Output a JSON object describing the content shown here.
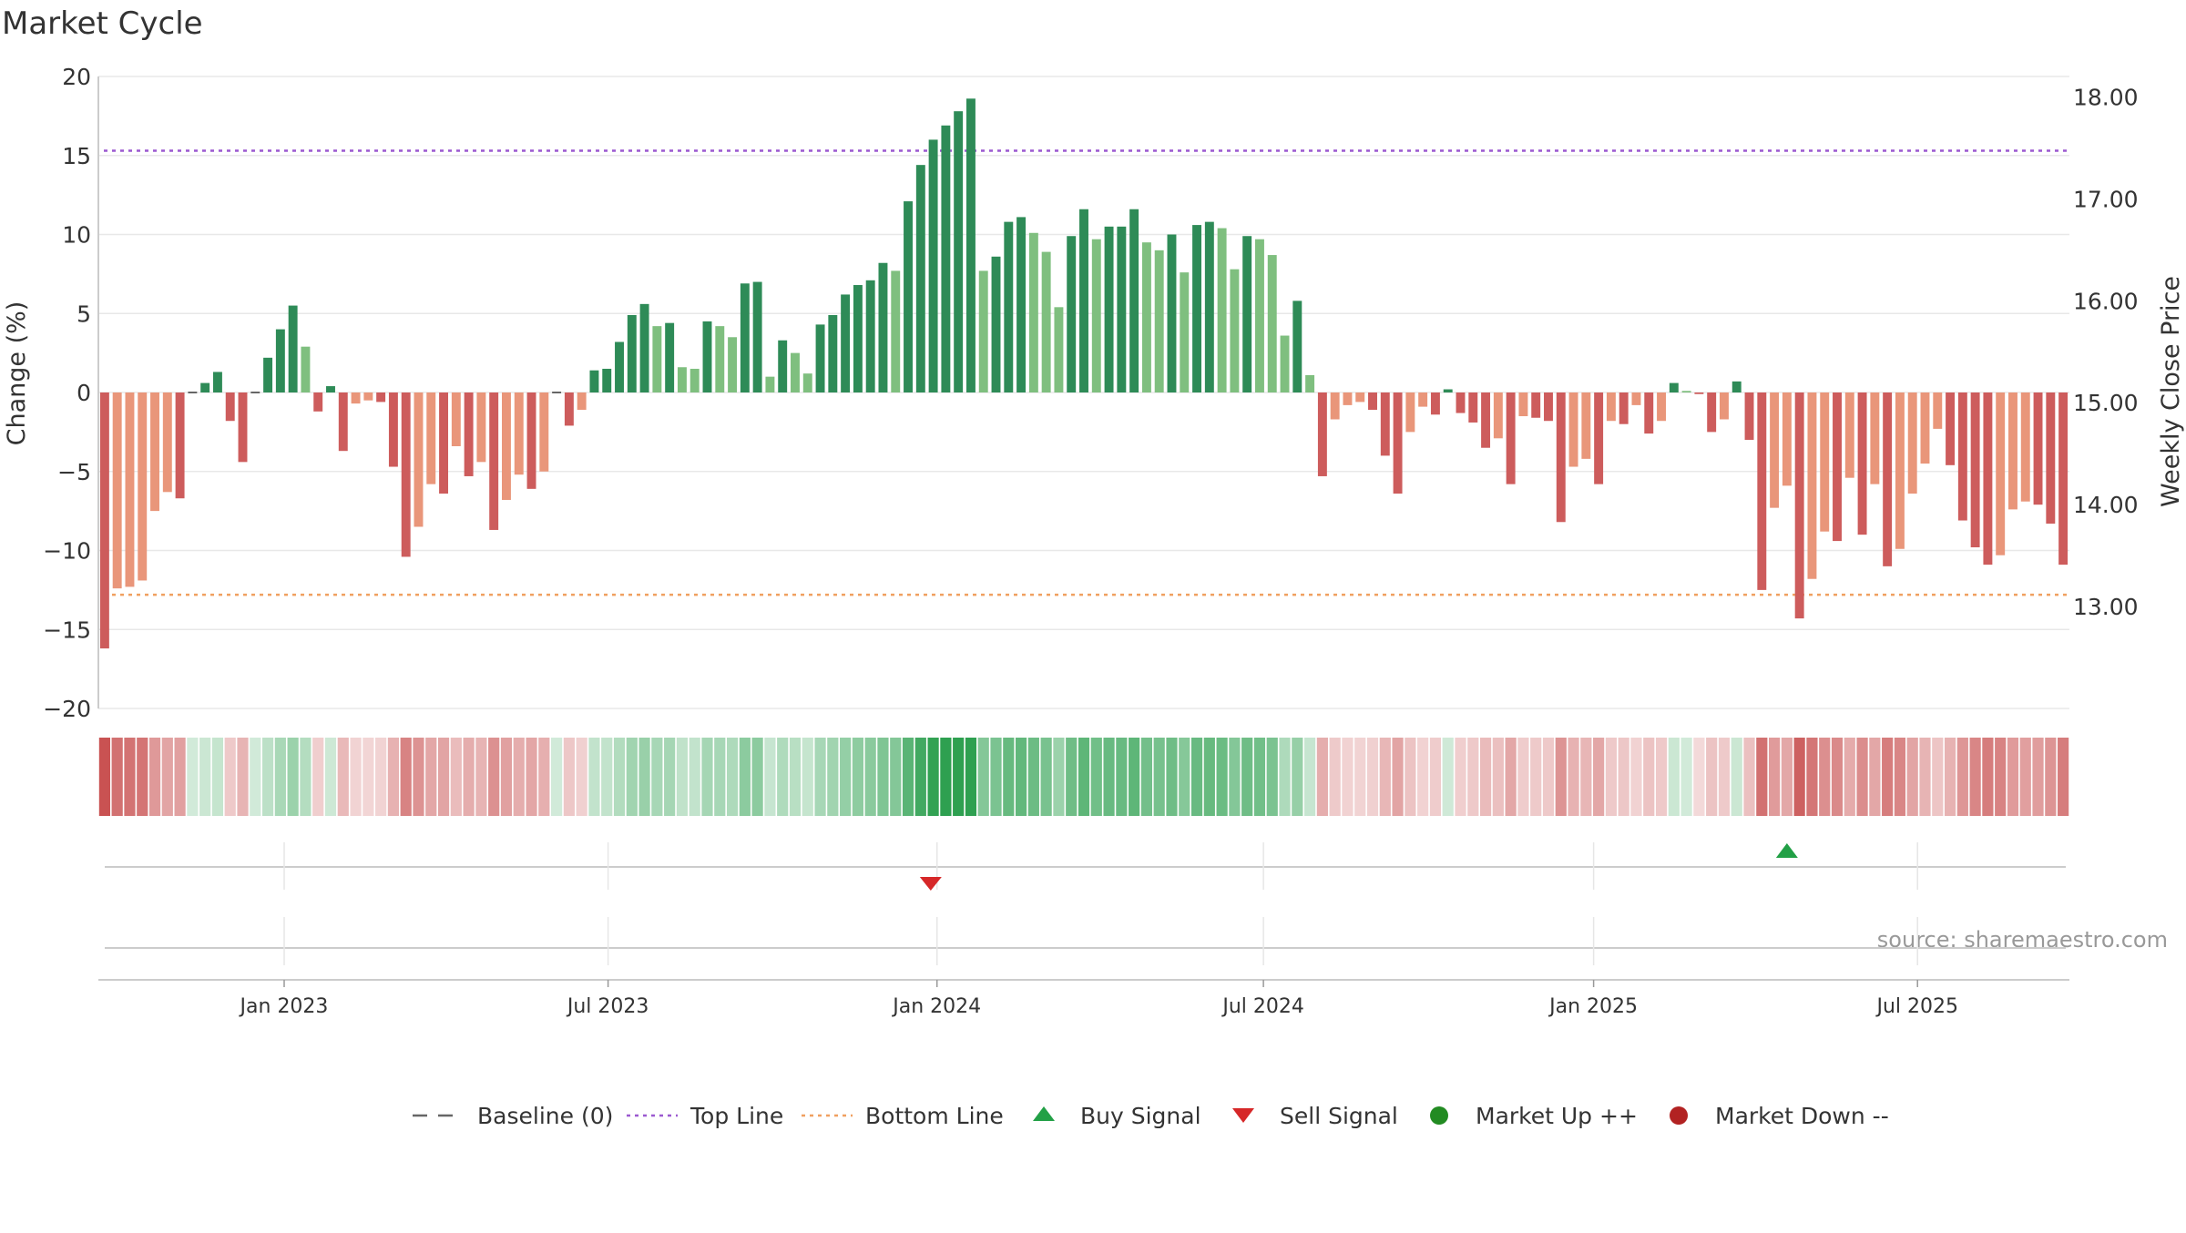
{
  "chart_data": {
    "type": "bar",
    "title": "Market Cycle",
    "ylabel": "Change (%)",
    "ylabel_right": "Weekly Close Price",
    "ylim": [
      -20,
      20
    ],
    "ylim_right": [
      12.0,
      18.2
    ],
    "y_ticks": [
      20,
      15,
      10,
      5,
      0,
      -5,
      -10,
      -15,
      -20
    ],
    "y_tick_labels": [
      "20",
      "15",
      "10",
      "5",
      "0",
      "−5",
      "−10",
      "−15",
      "−20"
    ],
    "y_right_ticks": [
      18,
      17,
      16,
      15,
      14,
      13
    ],
    "y_right_tick_labels": [
      "18.00",
      "17.00",
      "16.00",
      "15.00",
      "14.00",
      "13.00"
    ],
    "x_start_week": 0,
    "x_weeks_total": 157,
    "x_ticks": [
      {
        "label": "Jan 2023",
        "week": 14.8
      },
      {
        "label": "Jul 2023",
        "week": 40.6
      },
      {
        "label": "Jan 2024",
        "week": 66.8
      },
      {
        "label": "Jul 2024",
        "week": 92.8
      },
      {
        "label": "Jan 2025",
        "week": 119.1
      },
      {
        "label": "Jul 2025",
        "week": 144.9
      }
    ],
    "top_line": 15.3,
    "bottom_line": -12.8,
    "values": [
      -16.2,
      -12.4,
      -12.3,
      -11.9,
      -7.5,
      -6.3,
      -6.7,
      0,
      0.6,
      1.3,
      -1.8,
      -4.4,
      0,
      2.2,
      4.0,
      5.5,
      2.9,
      -1.2,
      0.4,
      -3.7,
      -0.7,
      -0.5,
      -0.6,
      -4.7,
      -10.4,
      -8.5,
      -5.8,
      -6.4,
      -3.4,
      -5.3,
      -4.4,
      -8.7,
      -6.8,
      -5.2,
      -6.1,
      -5.0,
      0,
      -2.1,
      -1.1,
      1.4,
      1.5,
      3.2,
      4.9,
      5.6,
      4.2,
      4.4,
      1.6,
      1.5,
      4.5,
      4.2,
      3.5,
      6.9,
      7.0,
      1.0,
      3.3,
      2.5,
      1.2,
      4.3,
      4.9,
      6.2,
      6.8,
      7.1,
      8.2,
      7.7,
      12.1,
      14.4,
      16.0,
      16.9,
      17.8,
      18.6,
      7.7,
      8.6,
      10.8,
      11.1,
      10.1,
      8.9,
      5.4,
      9.9,
      11.6,
      9.7,
      10.5,
      10.5,
      11.6,
      9.5,
      9.0,
      10.0,
      7.6,
      10.6,
      10.8,
      10.4,
      7.8,
      9.9,
      9.7,
      8.7,
      3.6,
      5.8,
      1.1,
      -5.3,
      -1.7,
      -0.8,
      -0.6,
      -1.1,
      -4.0,
      -6.4,
      -2.5,
      -0.9,
      -1.4,
      0.2,
      -1.3,
      -1.9,
      -3.5,
      -2.9,
      -5.8,
      -1.5,
      -1.6,
      -1.8,
      -8.2,
      -4.7,
      -4.2,
      -5.8,
      -1.8,
      -2.0,
      -0.8,
      -2.6,
      -1.8,
      0.6,
      0.1,
      -0.1,
      -2.5,
      -1.7,
      0.7,
      -3.0,
      -12.5,
      -7.3,
      -5.9,
      -14.3,
      -11.8,
      -8.8,
      -9.4,
      -5.4,
      -9.0,
      -5.8,
      -11.0,
      -9.9,
      -6.4,
      -4.5,
      -2.3,
      -4.6,
      -8.1,
      -9.8,
      -10.9,
      -10.3,
      -7.4,
      -6.9,
      -7.1,
      -8.3,
      -10.9
    ],
    "series": [
      {
        "name": "Baseline (0)",
        "kind": "line",
        "dash": "long",
        "color": "#666666"
      },
      {
        "name": "Top Line",
        "kind": "line",
        "dash": "dot",
        "color": "#9b59d0"
      },
      {
        "name": "Bottom Line",
        "kind": "line",
        "dash": "dot",
        "color": "#f0a060"
      },
      {
        "name": "Buy Signal",
        "kind": "marker",
        "symbol": "triangle-up",
        "color": "#22a046",
        "weeks": [
          134.5
        ]
      },
      {
        "name": "Sell Signal",
        "kind": "marker",
        "symbol": "triangle-down",
        "color": "#d62728",
        "weeks": [
          66.3
        ]
      },
      {
        "name": "Market Up ++",
        "kind": "marker",
        "symbol": "circle",
        "color": "#228b22",
        "weeks": []
      },
      {
        "name": "Market Down --",
        "kind": "marker",
        "symbol": "circle",
        "color": "#b22222",
        "weeks": []
      }
    ],
    "colors": {
      "up_strong": "#2e8b57",
      "up_weak": "#7fbf7f",
      "down_strong": "#cd5c5c",
      "down_weak": "#e9967a",
      "grid": "#e8e8e8",
      "axis": "#cccccc"
    },
    "legend_position": "bottom-center",
    "source": "source: sharemaestro.com",
    "grid": true
  }
}
